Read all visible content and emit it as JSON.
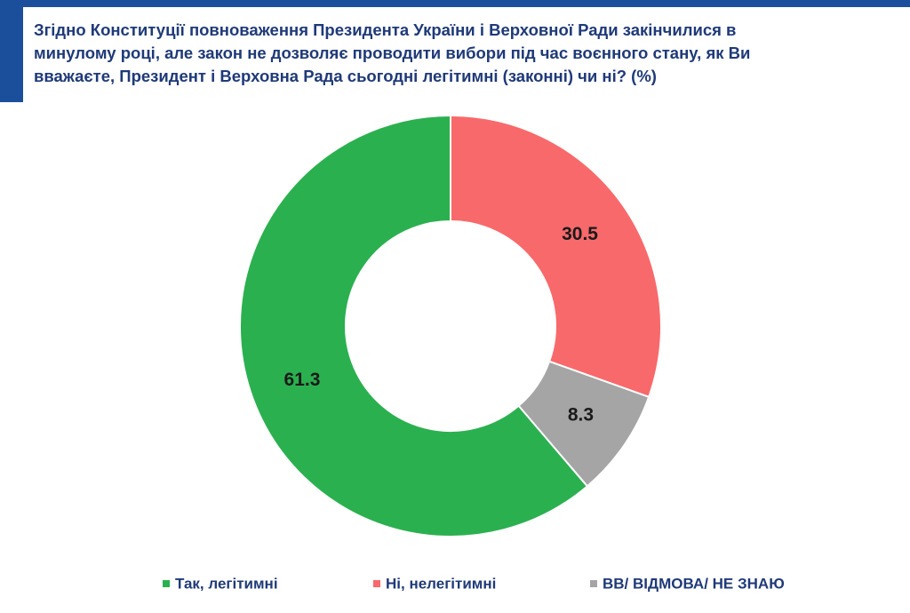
{
  "chart_data": {
    "type": "donut",
    "title_lines": [
      "Згідно Конституції повноваження Президента України і Верховної Ради закінчилися в",
      "минулому році, але закон не дозволяє проводити вибори під час воєнного стану, як Ви",
      "вважаєте, Президент і Верховна Рада сьогодні легітимні (законні) чи ні? (%)"
    ],
    "categories": [
      "Ні, нелегітимні",
      "ВВ/ ВІДМОВА/ НЕ ЗНАЮ",
      "Так, легітимні"
    ],
    "values": [
      30.5,
      8.3,
      61.3
    ],
    "colors": [
      "#f8696b",
      "#a5a5a5",
      "#2bb04f"
    ],
    "legend_order": [
      2,
      0,
      1
    ]
  }
}
